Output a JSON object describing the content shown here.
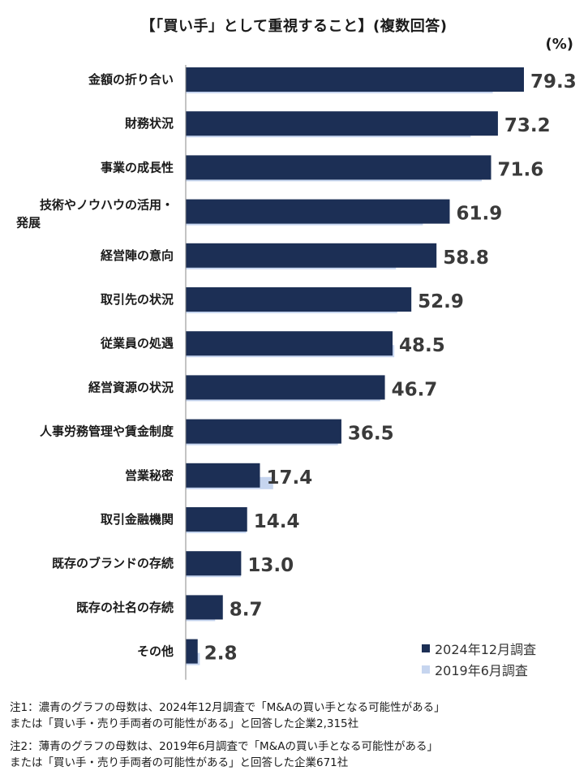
{
  "title": "【「買い手」として重視すること】(複数回答)",
  "unit": "(%)",
  "colors": {
    "dark": "#1c2f55",
    "light": "#c6d5ef"
  },
  "legend": [
    {
      "label": "2024年12月調査",
      "color": "#1c2f55"
    },
    {
      "label": "2019年6月調査",
      "color": "#c6d5ef"
    }
  ],
  "notes": [
    "注1：濃青のグラフの母数は、2024年12月調査で「M&Aの買い手となる可能性がある」",
    "または「買い手・売り手両者の可能性がある」と回答した企業2,315社",
    "注2：薄青のグラフの母数は、2019年6月調査で「M&Aの買い手となる可能性がある」",
    "または「買い手・売り手両者の可能性がある」と回答した企業671社"
  ],
  "chart_data": {
    "type": "bar",
    "orientation": "horizontal",
    "title": "【「買い手」として重視すること】(複数回答)",
    "unit": "%",
    "xlim": [
      0,
      80
    ],
    "grid": false,
    "legend_position": "bottom-right",
    "categories": [
      [
        "金額の折り合い"
      ],
      [
        "財務状況"
      ],
      [
        "事業の成長性"
      ],
      [
        "技術やノウハウの活用・",
        "発展"
      ],
      [
        "経営陣の意向"
      ],
      [
        "取引先の状況"
      ],
      [
        "従業員の処遇"
      ],
      [
        "経営資源の状況"
      ],
      [
        "人事労務管理や賃金制度"
      ],
      [
        "営業秘密"
      ],
      [
        "取引金融機関"
      ],
      [
        "既存のブランドの存続"
      ],
      [
        "既存の社名の存続"
      ],
      [
        "その他"
      ]
    ],
    "series": [
      {
        "name": "2024年12月調査",
        "values": [
          79.3,
          73.2,
          71.6,
          61.9,
          58.8,
          52.9,
          48.5,
          46.7,
          36.5,
          17.4,
          14.4,
          13.0,
          8.7,
          2.8
        ],
        "labels": [
          "79.3",
          "73.2",
          "71.6",
          "61.9",
          "58.8",
          "52.9",
          "48.5",
          "46.7",
          "36.5",
          "17.4",
          "14.4",
          "13.0",
          "8.7",
          "2.8"
        ]
      },
      {
        "name": "2019年6月調査",
        "values": [
          72.0,
          66.8,
          69.4,
          55.6,
          49.3,
          49.6,
          48.9,
          45.6,
          35.7,
          20.5,
          14.2,
          12.9,
          6.9,
          3.3
        ]
      }
    ]
  }
}
